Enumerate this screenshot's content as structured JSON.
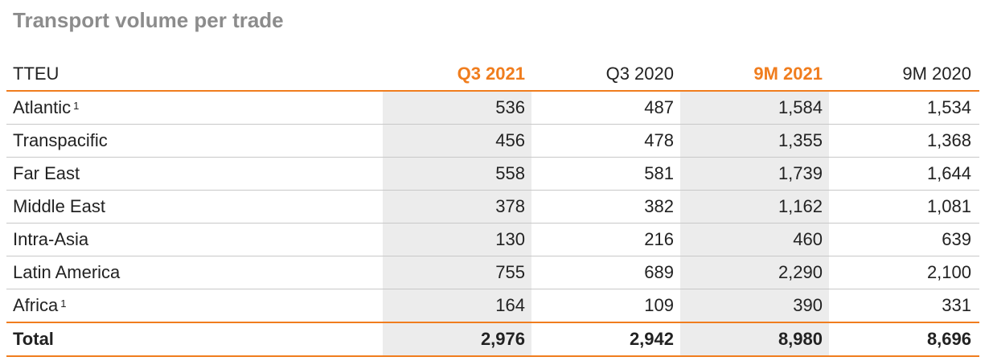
{
  "title": "Transport volume per trade",
  "table": {
    "unit_label": "TTEU",
    "columns": [
      "Q3 2021",
      "Q3 2020",
      "9M 2021",
      "9M 2020"
    ],
    "rows": [
      {
        "label": "Atlantic",
        "note": "1",
        "values": [
          "536",
          "487",
          "1,584",
          "1,534"
        ]
      },
      {
        "label": "Transpacific",
        "note": "",
        "values": [
          "456",
          "478",
          "1,355",
          "1,368"
        ]
      },
      {
        "label": "Far East",
        "note": "",
        "values": [
          "558",
          "581",
          "1,739",
          "1,644"
        ]
      },
      {
        "label": "Middle East",
        "note": "",
        "values": [
          "378",
          "382",
          "1,162",
          "1,081"
        ]
      },
      {
        "label": "Intra-Asia",
        "note": "",
        "values": [
          "130",
          "216",
          "460",
          "639"
        ]
      },
      {
        "label": "Latin America",
        "note": "",
        "values": [
          "755",
          "689",
          "2,290",
          "2,100"
        ]
      },
      {
        "label": "Africa",
        "note": "1",
        "values": [
          "164",
          "109",
          "390",
          "331"
        ]
      }
    ],
    "total": {
      "label": "Total",
      "values": [
        "2,976",
        "2,942",
        "8,980",
        "8,696"
      ]
    }
  },
  "colors": {
    "accent": "#f07d1e",
    "title": "#8c8c8c",
    "shade": "#ececec"
  }
}
